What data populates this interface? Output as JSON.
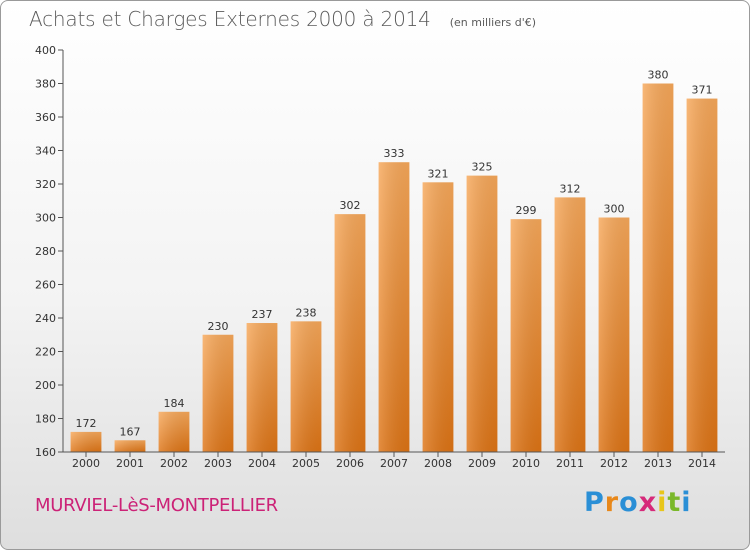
{
  "header": {
    "title": "Achats et Charges Externes 2000 à 2014",
    "subtitle": "(en milliers d'€)"
  },
  "footer": {
    "location": "MURVIEL-LèS-MONTPELLIER",
    "brand_letters": [
      "P",
      "r",
      "o",
      "x",
      "i",
      "t",
      "i"
    ],
    "brand_colors": [
      "#2a8fd6",
      "#e8881a",
      "#2a8fd6",
      "#d62a7a",
      "#e8c61a",
      "#7ab82a",
      "#2a8fd6"
    ]
  },
  "chart_data": {
    "type": "bar",
    "categories": [
      "2000",
      "2001",
      "2002",
      "2003",
      "2004",
      "2005",
      "2006",
      "2007",
      "2008",
      "2009",
      "2010",
      "2011",
      "2012",
      "2013",
      "2014"
    ],
    "values": [
      172,
      167,
      184,
      230,
      237,
      238,
      302,
      333,
      321,
      325,
      299,
      312,
      300,
      380,
      371
    ],
    "ylim": [
      160,
      400
    ],
    "yticks": [
      160,
      180,
      200,
      220,
      240,
      260,
      280,
      300,
      320,
      340,
      360,
      380,
      400
    ],
    "grid": false,
    "bar_color": "#f0923a",
    "xlabel": "",
    "ylabel": ""
  }
}
